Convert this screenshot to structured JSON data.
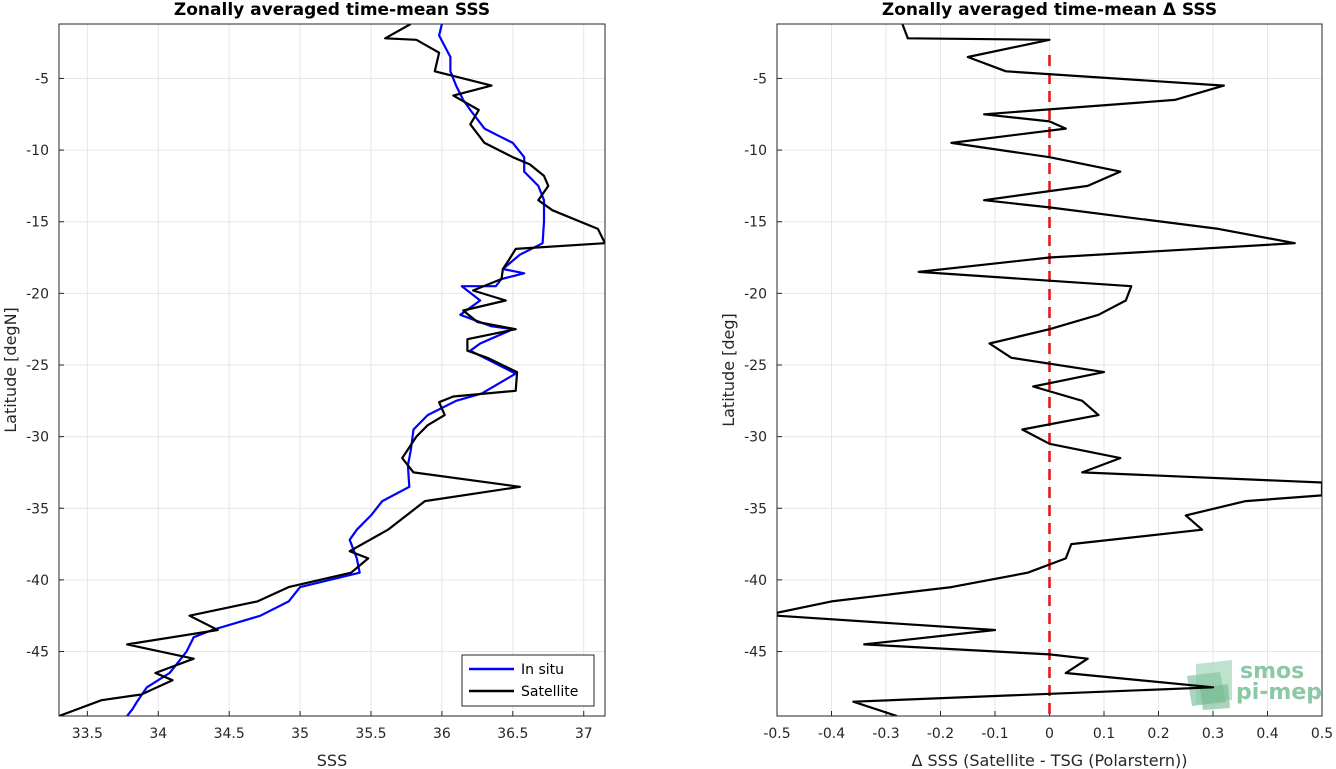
{
  "chart_data": [
    {
      "type": "line",
      "title": "Zonally averaged time-mean SSS",
      "xlabel": "SSS",
      "ylabel": "Latitude [degN]",
      "xlim": [
        33.3,
        37.15
      ],
      "ylim": [
        -49.5,
        -1.2
      ],
      "xticks": [
        "33.5",
        "34",
        "34.5",
        "35",
        "35.5",
        "36",
        "36.5",
        "37"
      ],
      "yticks": [
        "-5",
        "-10",
        "-15",
        "-20",
        "-25",
        "-30",
        "-35",
        "-40",
        "-45"
      ],
      "grid": true,
      "legend_position": "bottom-right",
      "series": [
        {
          "name": "In situ",
          "color": "#0000ff",
          "points": [
            [
              36.0,
              -1.2
            ],
            [
              35.98,
              -2.0
            ],
            [
              36.06,
              -3.5
            ],
            [
              36.06,
              -4.5
            ],
            [
              36.1,
              -5.5
            ],
            [
              36.15,
              -6.5
            ],
            [
              36.2,
              -7.2
            ],
            [
              36.3,
              -8.5
            ],
            [
              36.4,
              -9.0
            ],
            [
              36.5,
              -9.5
            ],
            [
              36.58,
              -10.5
            ],
            [
              36.58,
              -11.5
            ],
            [
              36.68,
              -12.5
            ],
            [
              36.72,
              -13.5
            ],
            [
              36.72,
              -15.0
            ],
            [
              36.71,
              -16.5
            ],
            [
              36.55,
              -17.3
            ],
            [
              36.43,
              -18.3
            ],
            [
              36.58,
              -18.6
            ],
            [
              36.42,
              -19.0
            ],
            [
              36.38,
              -19.5
            ],
            [
              36.14,
              -19.5
            ],
            [
              36.27,
              -20.5
            ],
            [
              36.13,
              -21.5
            ],
            [
              36.35,
              -22.3
            ],
            [
              36.5,
              -22.5
            ],
            [
              36.27,
              -23.5
            ],
            [
              36.2,
              -24.0
            ],
            [
              36.4,
              -25.0
            ],
            [
              36.52,
              -25.6
            ],
            [
              36.28,
              -27.0
            ],
            [
              36.1,
              -27.5
            ],
            [
              35.9,
              -28.5
            ],
            [
              35.8,
              -29.5
            ],
            [
              35.78,
              -31.0
            ],
            [
              35.76,
              -32.0
            ],
            [
              35.77,
              -33.5
            ],
            [
              35.58,
              -34.5
            ],
            [
              35.5,
              -35.5
            ],
            [
              35.4,
              -36.5
            ],
            [
              35.35,
              -37.2
            ],
            [
              35.4,
              -38.5
            ],
            [
              35.42,
              -39.5
            ],
            [
              35.0,
              -40.5
            ],
            [
              34.92,
              -41.5
            ],
            [
              34.72,
              -42.5
            ],
            [
              34.38,
              -43.5
            ],
            [
              34.25,
              -44.0
            ],
            [
              34.2,
              -45.0
            ],
            [
              34.12,
              -46.0
            ],
            [
              34.08,
              -46.5
            ],
            [
              33.92,
              -47.5
            ],
            [
              33.85,
              -48.5
            ],
            [
              33.82,
              -49.0
            ],
            [
              33.78,
              -49.5
            ]
          ]
        },
        {
          "name": "Satellite",
          "color": "#000000",
          "points": [
            [
              35.78,
              -1.2
            ],
            [
              35.6,
              -2.2
            ],
            [
              35.82,
              -2.3
            ],
            [
              35.98,
              -3.2
            ],
            [
              35.95,
              -4.5
            ],
            [
              36.35,
              -5.5
            ],
            [
              36.08,
              -6.2
            ],
            [
              36.26,
              -7.2
            ],
            [
              36.2,
              -8.2
            ],
            [
              36.3,
              -9.5
            ],
            [
              36.5,
              -10.5
            ],
            [
              36.62,
              -11.0
            ],
            [
              36.72,
              -11.8
            ],
            [
              36.75,
              -12.5
            ],
            [
              36.68,
              -13.5
            ],
            [
              36.78,
              -14.2
            ],
            [
              37.1,
              -15.5
            ],
            [
              37.15,
              -16.5
            ],
            [
              36.52,
              -16.9
            ],
            [
              36.47,
              -17.7
            ],
            [
              36.43,
              -18.3
            ],
            [
              36.42,
              -19.0
            ],
            [
              36.22,
              -19.8
            ],
            [
              36.45,
              -20.5
            ],
            [
              36.15,
              -21.2
            ],
            [
              36.25,
              -22.0
            ],
            [
              36.52,
              -22.5
            ],
            [
              36.18,
              -23.2
            ],
            [
              36.18,
              -24.0
            ],
            [
              36.32,
              -24.5
            ],
            [
              36.53,
              -25.5
            ],
            [
              36.52,
              -26.8
            ],
            [
              36.08,
              -27.2
            ],
            [
              35.98,
              -27.6
            ],
            [
              36.02,
              -28.5
            ],
            [
              35.9,
              -29.2
            ],
            [
              35.82,
              -30.0
            ],
            [
              35.72,
              -31.5
            ],
            [
              35.8,
              -32.5
            ],
            [
              36.55,
              -33.5
            ],
            [
              35.88,
              -34.5
            ],
            [
              35.62,
              -36.5
            ],
            [
              35.35,
              -38.0
            ],
            [
              35.48,
              -38.5
            ],
            [
              35.36,
              -39.5
            ],
            [
              34.92,
              -40.5
            ],
            [
              34.7,
              -41.5
            ],
            [
              34.22,
              -42.5
            ],
            [
              34.42,
              -43.5
            ],
            [
              33.78,
              -44.5
            ],
            [
              34.25,
              -45.5
            ],
            [
              33.98,
              -46.5
            ],
            [
              34.1,
              -47.0
            ],
            [
              33.88,
              -48.0
            ],
            [
              33.6,
              -48.4
            ],
            [
              33.3,
              -49.5
            ]
          ]
        }
      ]
    },
    {
      "type": "line",
      "title": "Zonally averaged time-mean Δ SSS",
      "xlabel": "Δ SSS (Satellite - TSG (Polarstern))",
      "ylabel": "Latitude [deg]",
      "xlim": [
        -0.5,
        0.5
      ],
      "ylim": [
        -49.5,
        -1.2
      ],
      "xticks": [
        "-0.5",
        "-0.4",
        "-0.3",
        "-0.2",
        "-0.1",
        "0",
        "0.1",
        "0.2",
        "0.3",
        "0.4",
        "0.5"
      ],
      "yticks": [
        "-5",
        "-10",
        "-15",
        "-20",
        "-25",
        "-30",
        "-35",
        "-40",
        "-45"
      ],
      "grid": true,
      "reference_line": {
        "x": 0,
        "color": "#e41a1c",
        "style": "dashed"
      },
      "series": [
        {
          "color": "#000000",
          "points": [
            [
              -0.27,
              -1.2
            ],
            [
              -0.26,
              -2.2
            ],
            [
              0.0,
              -2.3
            ],
            [
              -0.15,
              -3.5
            ],
            [
              -0.08,
              -4.5
            ],
            [
              0.32,
              -5.5
            ],
            [
              0.23,
              -6.5
            ],
            [
              -0.12,
              -7.5
            ],
            [
              0.0,
              -8.0
            ],
            [
              0.03,
              -8.5
            ],
            [
              -0.18,
              -9.5
            ],
            [
              0.0,
              -10.5
            ],
            [
              0.13,
              -11.5
            ],
            [
              0.07,
              -12.5
            ],
            [
              -0.12,
              -13.5
            ],
            [
              0.0,
              -14.0
            ],
            [
              0.31,
              -15.5
            ],
            [
              0.45,
              -16.5
            ],
            [
              0.0,
              -17.5
            ],
            [
              -0.24,
              -18.5
            ],
            [
              0.15,
              -19.5
            ],
            [
              0.14,
              -20.5
            ],
            [
              0.09,
              -21.5
            ],
            [
              0.0,
              -22.5
            ],
            [
              -0.11,
              -23.5
            ],
            [
              -0.07,
              -24.5
            ],
            [
              0.1,
              -25.5
            ],
            [
              -0.03,
              -26.5
            ],
            [
              0.06,
              -27.5
            ],
            [
              0.09,
              -28.5
            ],
            [
              -0.05,
              -29.5
            ],
            [
              0.0,
              -30.5
            ],
            [
              0.13,
              -31.5
            ],
            [
              0.06,
              -32.5
            ],
            [
              0.5,
              -33.2
            ],
            [
              0.5,
              -34.1
            ],
            [
              0.36,
              -34.5
            ],
            [
              0.25,
              -35.5
            ],
            [
              0.28,
              -36.5
            ],
            [
              0.04,
              -37.5
            ],
            [
              0.03,
              -38.5
            ],
            [
              -0.04,
              -39.5
            ],
            [
              -0.18,
              -40.5
            ],
            [
              -0.4,
              -41.5
            ],
            [
              -0.5,
              -42.3
            ],
            [
              -0.5,
              -42.5
            ],
            [
              -0.1,
              -43.5
            ],
            [
              -0.34,
              -44.5
            ],
            [
              0.0,
              -45.2
            ],
            [
              0.07,
              -45.5
            ],
            [
              0.03,
              -46.5
            ],
            [
              0.3,
              -47.5
            ],
            [
              -0.36,
              -48.5
            ],
            [
              -0.28,
              -49.5
            ]
          ]
        }
      ]
    }
  ],
  "legend": {
    "insitu_label": "In situ",
    "satellite_label": "Satellite"
  },
  "logo": {
    "line1": "smos",
    "line2": "pi-mep"
  }
}
